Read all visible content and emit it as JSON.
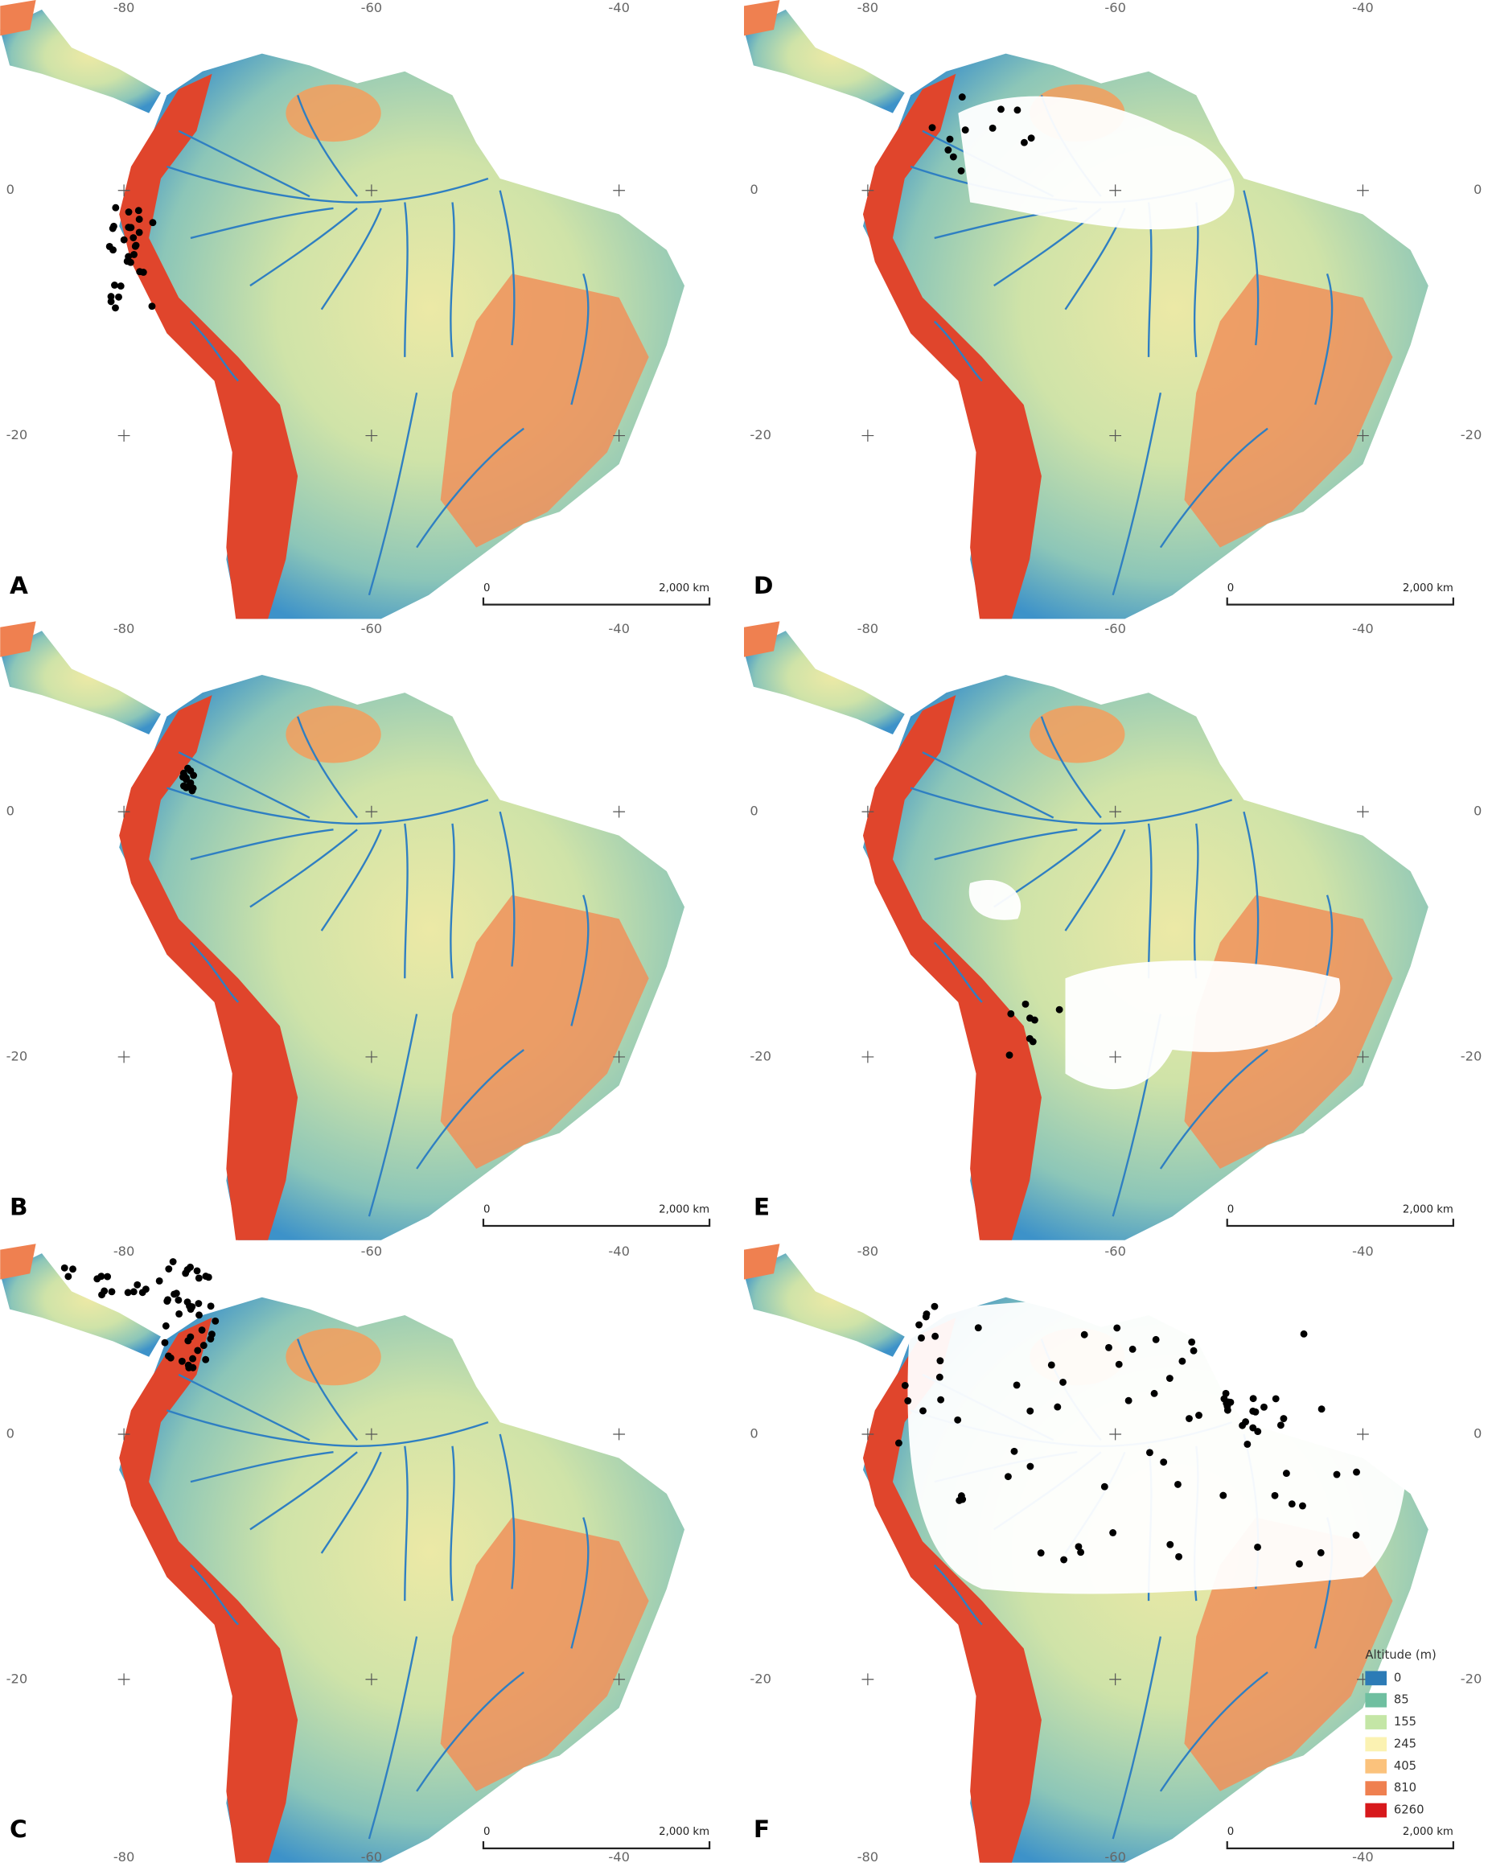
{
  "panels": [
    "A",
    "B",
    "C",
    "D",
    "E",
    "F"
  ],
  "lon_labels": [
    "-80",
    "-60",
    "-40"
  ],
  "lat_labels": [
    "0",
    "-20"
  ],
  "scale_bar": {
    "start": "0",
    "end": "2,000 km"
  },
  "legend": {
    "title": "Altitude (m)",
    "entries": [
      {
        "label": "0",
        "color": "#2c7bb6"
      },
      {
        "label": "85",
        "color": "#6fbfa0"
      },
      {
        "label": "155",
        "color": "#c4e6a6"
      },
      {
        "label": "245",
        "color": "#fbf2b2"
      },
      {
        "label": "405",
        "color": "#fbc27c"
      },
      {
        "label": "810",
        "color": "#ef8050"
      },
      {
        "label": "6260",
        "color": "#d7191c"
      }
    ]
  }
}
